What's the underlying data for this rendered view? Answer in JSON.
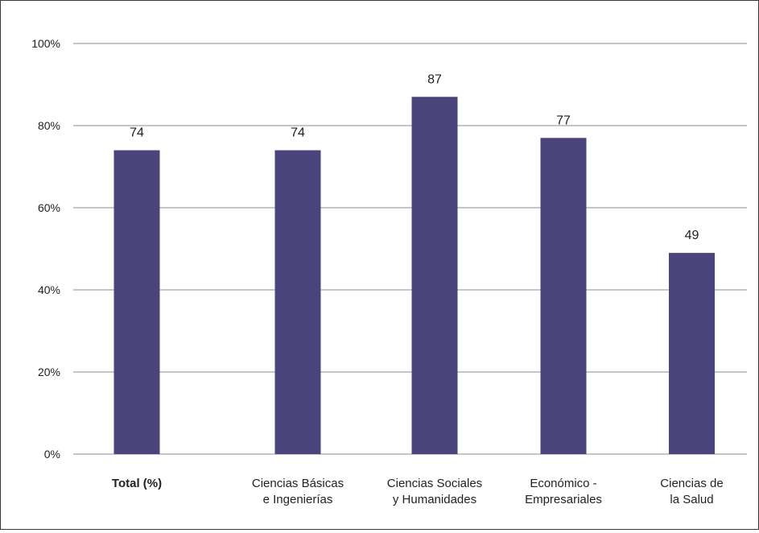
{
  "chart_data": {
    "type": "bar",
    "categories": [
      {
        "lines": [
          "Total (%)"
        ],
        "bold": true
      },
      {
        "lines": [
          "Ciencias Básicas",
          "e Ingenierías"
        ],
        "bold": false
      },
      {
        "lines": [
          "Ciencias Sociales",
          "y Humanidades"
        ],
        "bold": false
      },
      {
        "lines": [
          "Económico -",
          "Empresariales"
        ],
        "bold": false
      },
      {
        "lines": [
          "Ciencias de",
          "la Salud"
        ],
        "bold": false
      }
    ],
    "values": [
      74,
      74,
      87,
      77,
      49
    ],
    "data_labels": [
      "74",
      "74",
      "87",
      "77",
      "49"
    ],
    "ylim": [
      0,
      100
    ],
    "y_ticks": [
      0,
      20,
      40,
      60,
      80,
      100
    ],
    "y_tick_labels": [
      "0%",
      "20%",
      "40%",
      "60%",
      "80%",
      "100%"
    ],
    "grid": true,
    "bar_color": "#4a447c",
    "grid_color": "#8c8c8c"
  }
}
